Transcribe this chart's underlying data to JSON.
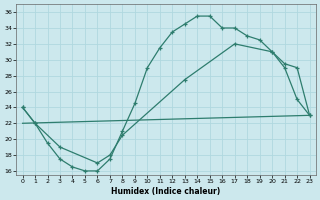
{
  "bg_color": "#cce8ed",
  "grid_color": "#b0d8df",
  "line_color": "#2e7d6e",
  "xlabel": "Humidex (Indice chaleur)",
  "xlim": [
    -0.5,
    23.5
  ],
  "ylim": [
    15.5,
    37
  ],
  "xticks": [
    0,
    1,
    2,
    3,
    4,
    5,
    6,
    7,
    8,
    9,
    10,
    11,
    12,
    13,
    14,
    15,
    16,
    17,
    18,
    19,
    20,
    21,
    22,
    23
  ],
  "yticks": [
    16,
    18,
    20,
    22,
    24,
    26,
    28,
    30,
    32,
    34,
    36
  ],
  "line1_x": [
    0,
    1,
    2,
    3,
    4,
    5,
    6,
    7,
    8,
    9,
    10,
    11,
    12,
    13,
    14,
    15,
    16,
    17,
    18,
    19,
    20,
    21,
    22,
    23
  ],
  "line1_y": [
    24,
    22,
    19.5,
    17.5,
    16.5,
    16,
    16,
    17.5,
    21,
    24.5,
    29,
    31.5,
    33.5,
    34.5,
    35.5,
    35.5,
    34,
    34,
    33,
    32.5,
    31,
    29,
    25,
    23
  ],
  "line2_x": [
    0,
    1,
    3,
    6,
    7,
    8,
    13,
    17,
    20,
    21,
    22,
    23
  ],
  "line2_y": [
    24,
    22,
    19,
    17,
    18,
    20.5,
    27.5,
    32,
    31,
    29.5,
    29,
    23
  ],
  "line3_x": [
    0,
    23
  ],
  "line3_y": [
    22,
    23
  ]
}
